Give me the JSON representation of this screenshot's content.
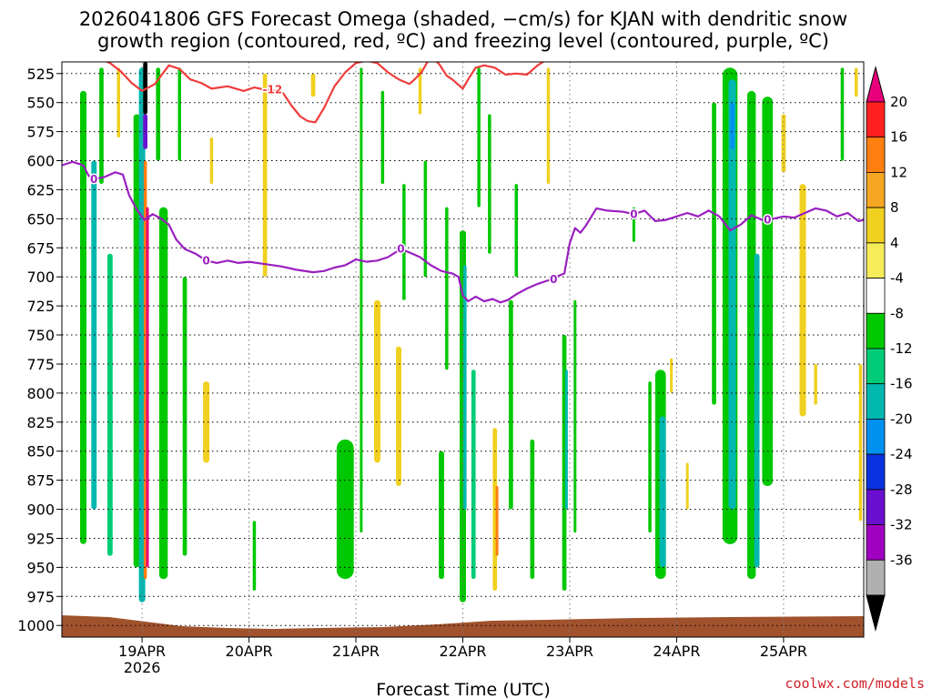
{
  "title_lines": [
    "2026041806 GFS Forecast Omega (shaded, −cm/s) for KJAN with dendritic snow",
    "growth region (contoured, red, ºC) and freezing level (contoured, purple, ºC)"
  ],
  "credit": "coolwx.com/models",
  "chart_data": {
    "type": "heatmap",
    "xlabel": "Forecast Time (UTC)",
    "ylabel": "",
    "x_ticks": [
      "19APR",
      "20APR",
      "21APR",
      "22APR",
      "23APR",
      "24APR",
      "25APR"
    ],
    "x_tick_sub": {
      "19APR": "2026"
    },
    "x_range_days": [
      18.25,
      25.75
    ],
    "y_ticks": [
      525,
      550,
      575,
      600,
      625,
      650,
      675,
      700,
      725,
      750,
      775,
      800,
      825,
      850,
      875,
      900,
      925,
      950,
      975,
      1000
    ],
    "y_range": [
      515,
      1010
    ],
    "grid": true,
    "colorbar": {
      "labels": [
        20,
        16,
        12,
        8,
        4,
        -4,
        -8,
        -12,
        -16,
        -20,
        -24,
        -28,
        -32,
        -36
      ],
      "colors": [
        "#e8007a",
        "#ff2020",
        "#ff7f10",
        "#f5a623",
        "#f0d020",
        "#f6ec5a",
        "#ffffff",
        "#00c800",
        "#00cc77",
        "#00b8b0",
        "#0090f0",
        "#0a32e0",
        "#6a0fd0",
        "#a000c0",
        "#b0b0b0",
        "#000000"
      ]
    },
    "omega_patches": [
      {
        "x": 18.45,
        "p0": 540,
        "p1": 930,
        "w": 0.06,
        "c": "#00c800"
      },
      {
        "x": 18.55,
        "p0": 600,
        "p1": 900,
        "w": 0.05,
        "c": "#00b8b0"
      },
      {
        "x": 18.62,
        "p0": 520,
        "p1": 620,
        "w": 0.04,
        "c": "#00c800"
      },
      {
        "x": 18.7,
        "p0": 680,
        "p1": 940,
        "w": 0.05,
        "c": "#00cc77"
      },
      {
        "x": 18.78,
        "p0": 520,
        "p1": 580,
        "w": 0.03,
        "c": "#f0d020"
      },
      {
        "x": 18.95,
        "p0": 560,
        "p1": 950,
        "w": 0.06,
        "c": "#00c800"
      },
      {
        "x": 19.0,
        "p0": 520,
        "p1": 980,
        "w": 0.06,
        "c": "#00b8b0"
      },
      {
        "x": 19.03,
        "p0": 600,
        "p1": 960,
        "w": 0.03,
        "c": "#ff7f10"
      },
      {
        "x": 19.05,
        "p0": 640,
        "p1": 950,
        "w": 0.02,
        "c": "#e8007a"
      },
      {
        "x": 19.03,
        "p0": 515,
        "p1": 560,
        "w": 0.04,
        "c": "#000000"
      },
      {
        "x": 19.03,
        "p0": 560,
        "p1": 590,
        "w": 0.04,
        "c": "#6a0fd0"
      },
      {
        "x": 19.2,
        "p0": 640,
        "p1": 960,
        "w": 0.08,
        "c": "#00c800"
      },
      {
        "x": 19.15,
        "p0": 520,
        "p1": 600,
        "w": 0.04,
        "c": "#00c800"
      },
      {
        "x": 19.35,
        "p0": 520,
        "p1": 600,
        "w": 0.03,
        "c": "#00c800"
      },
      {
        "x": 19.4,
        "p0": 700,
        "p1": 940,
        "w": 0.04,
        "c": "#00c800"
      },
      {
        "x": 19.6,
        "p0": 790,
        "p1": 860,
        "w": 0.06,
        "c": "#f0d020"
      },
      {
        "x": 19.65,
        "p0": 580,
        "p1": 620,
        "w": 0.03,
        "c": "#f0d020"
      },
      {
        "x": 20.05,
        "p0": 910,
        "p1": 970,
        "w": 0.03,
        "c": "#00c800"
      },
      {
        "x": 20.15,
        "p0": 525,
        "p1": 700,
        "w": 0.04,
        "c": "#f0d020"
      },
      {
        "x": 20.6,
        "p0": 525,
        "p1": 545,
        "w": 0.04,
        "c": "#f0d020"
      },
      {
        "x": 20.9,
        "p0": 840,
        "p1": 960,
        "w": 0.16,
        "c": "#00c800"
      },
      {
        "x": 21.05,
        "p0": 520,
        "p1": 920,
        "w": 0.02,
        "c": "#00c800"
      },
      {
        "x": 21.2,
        "p0": 720,
        "p1": 860,
        "w": 0.06,
        "c": "#f0d020"
      },
      {
        "x": 21.25,
        "p0": 540,
        "p1": 620,
        "w": 0.03,
        "c": "#00c800"
      },
      {
        "x": 21.4,
        "p0": 760,
        "p1": 880,
        "w": 0.05,
        "c": "#f0d020"
      },
      {
        "x": 21.45,
        "p0": 620,
        "p1": 720,
        "w": 0.03,
        "c": "#00c800"
      },
      {
        "x": 21.6,
        "p0": 520,
        "p1": 560,
        "w": 0.03,
        "c": "#f0d020"
      },
      {
        "x": 21.65,
        "p0": 600,
        "p1": 700,
        "w": 0.03,
        "c": "#00c800"
      },
      {
        "x": 21.8,
        "p0": 850,
        "p1": 960,
        "w": 0.05,
        "c": "#00c800"
      },
      {
        "x": 21.85,
        "p0": 640,
        "p1": 780,
        "w": 0.03,
        "c": "#00c800"
      },
      {
        "x": 22.0,
        "p0": 660,
        "p1": 980,
        "w": 0.06,
        "c": "#00c800"
      },
      {
        "x": 22.02,
        "p0": 690,
        "p1": 900,
        "w": 0.03,
        "c": "#00b8b0"
      },
      {
        "x": 22.1,
        "p0": 780,
        "p1": 960,
        "w": 0.04,
        "c": "#00cc77"
      },
      {
        "x": 22.15,
        "p0": 520,
        "p1": 640,
        "w": 0.03,
        "c": "#00c800"
      },
      {
        "x": 22.25,
        "p0": 560,
        "p1": 680,
        "w": 0.03,
        "c": "#00c800"
      },
      {
        "x": 22.3,
        "p0": 830,
        "p1": 970,
        "w": 0.04,
        "c": "#f0d020"
      },
      {
        "x": 22.32,
        "p0": 880,
        "p1": 940,
        "w": 0.02,
        "c": "#ff7f10"
      },
      {
        "x": 22.45,
        "p0": 720,
        "p1": 900,
        "w": 0.04,
        "c": "#00c800"
      },
      {
        "x": 22.5,
        "p0": 620,
        "p1": 700,
        "w": 0.03,
        "c": "#00c800"
      },
      {
        "x": 22.65,
        "p0": 840,
        "p1": 960,
        "w": 0.04,
        "c": "#00c800"
      },
      {
        "x": 22.8,
        "p0": 520,
        "p1": 620,
        "w": 0.03,
        "c": "#f0d020"
      },
      {
        "x": 22.95,
        "p0": 750,
        "p1": 970,
        "w": 0.04,
        "c": "#00c800"
      },
      {
        "x": 22.97,
        "p0": 780,
        "p1": 900,
        "w": 0.02,
        "c": "#00b8b0"
      },
      {
        "x": 23.05,
        "p0": 720,
        "p1": 920,
        "w": 0.02,
        "c": "#00c800"
      },
      {
        "x": 23.6,
        "p0": 640,
        "p1": 670,
        "w": 0.02,
        "c": "#00c800"
      },
      {
        "x": 23.75,
        "p0": 790,
        "p1": 920,
        "w": 0.03,
        "c": "#00c800"
      },
      {
        "x": 23.85,
        "p0": 780,
        "p1": 960,
        "w": 0.1,
        "c": "#00c800"
      },
      {
        "x": 23.87,
        "p0": 820,
        "p1": 950,
        "w": 0.06,
        "c": "#00b8b0"
      },
      {
        "x": 23.95,
        "p0": 770,
        "p1": 800,
        "w": 0.02,
        "c": "#f0d020"
      },
      {
        "x": 24.1,
        "p0": 860,
        "p1": 900,
        "w": 0.02,
        "c": "#f0d020"
      },
      {
        "x": 24.35,
        "p0": 550,
        "p1": 810,
        "w": 0.04,
        "c": "#00c800"
      },
      {
        "x": 24.5,
        "p0": 520,
        "p1": 930,
        "w": 0.14,
        "c": "#00c800"
      },
      {
        "x": 24.52,
        "p0": 530,
        "p1": 900,
        "w": 0.07,
        "c": "#00b8b0"
      },
      {
        "x": 24.52,
        "p0": 550,
        "p1": 590,
        "w": 0.04,
        "c": "#0090f0"
      },
      {
        "x": 24.7,
        "p0": 540,
        "p1": 960,
        "w": 0.08,
        "c": "#00c800"
      },
      {
        "x": 24.75,
        "p0": 680,
        "p1": 950,
        "w": 0.05,
        "c": "#00b8b0"
      },
      {
        "x": 24.85,
        "p0": 545,
        "p1": 880,
        "w": 0.1,
        "c": "#00c800"
      },
      {
        "x": 25.0,
        "p0": 560,
        "p1": 610,
        "w": 0.04,
        "c": "#f0d020"
      },
      {
        "x": 25.18,
        "p0": 620,
        "p1": 820,
        "w": 0.06,
        "c": "#f0d020"
      },
      {
        "x": 25.3,
        "p0": 775,
        "p1": 810,
        "w": 0.03,
        "c": "#f0d020"
      },
      {
        "x": 25.55,
        "p0": 520,
        "p1": 600,
        "w": 0.03,
        "c": "#00c800"
      },
      {
        "x": 25.72,
        "p0": 775,
        "p1": 910,
        "w": 0.03,
        "c": "#f0d020"
      },
      {
        "x": 25.68,
        "p0": 520,
        "p1": 545,
        "w": 0.03,
        "c": "#f0d020"
      }
    ],
    "contours": [
      {
        "level": -12,
        "label": "-12",
        "color": "#f03c3c",
        "label_at": [
          20.22,
          539
        ],
        "points": [
          [
            18.6,
            512
          ],
          [
            18.7,
            516
          ],
          [
            18.8,
            523
          ],
          [
            18.9,
            533
          ],
          [
            19.0,
            540
          ],
          [
            19.12,
            534
          ],
          [
            19.25,
            518
          ],
          [
            19.35,
            521
          ],
          [
            19.45,
            530
          ],
          [
            19.55,
            533
          ],
          [
            19.65,
            538
          ],
          [
            19.8,
            536
          ],
          [
            19.95,
            540
          ],
          [
            20.05,
            537
          ],
          [
            20.15,
            539
          ],
          [
            20.25,
            540
          ],
          [
            20.32,
            542
          ],
          [
            20.4,
            553
          ],
          [
            20.48,
            562
          ],
          [
            20.55,
            566
          ],
          [
            20.62,
            567
          ],
          [
            20.7,
            555
          ],
          [
            20.8,
            536
          ],
          [
            20.9,
            524
          ],
          [
            21.0,
            516
          ],
          [
            21.1,
            514
          ],
          [
            21.2,
            516
          ],
          [
            21.3,
            524
          ],
          [
            21.4,
            530
          ],
          [
            21.5,
            534
          ],
          [
            21.55,
            530
          ],
          [
            21.62,
            523
          ],
          [
            21.7,
            510
          ],
          [
            21.78,
            517
          ],
          [
            21.85,
            527
          ],
          [
            21.9,
            530
          ],
          [
            22.0,
            538
          ],
          [
            22.05,
            530
          ],
          [
            22.12,
            520
          ],
          [
            22.2,
            518
          ],
          [
            22.3,
            520
          ],
          [
            22.4,
            526
          ],
          [
            22.5,
            525
          ],
          [
            22.6,
            526
          ],
          [
            22.7,
            518
          ],
          [
            22.8,
            512
          ],
          [
            22.9,
            514
          ],
          [
            23.0,
            512
          ],
          [
            23.1,
            510
          ]
        ]
      },
      {
        "level": 0,
        "label": "0",
        "color": "#9a1fc0",
        "label_at": [
          18.55,
          616
        ],
        "points": [
          [
            18.25,
            604
          ],
          [
            18.35,
            601
          ],
          [
            18.45,
            604
          ],
          [
            18.5,
            613
          ],
          [
            18.55,
            616
          ],
          [
            18.65,
            614
          ],
          [
            18.75,
            610
          ],
          [
            18.82,
            612
          ],
          [
            18.88,
            630
          ],
          [
            18.95,
            642
          ],
          [
            19.02,
            651
          ],
          [
            19.1,
            646
          ],
          [
            19.18,
            650
          ],
          [
            19.25,
            655
          ],
          [
            19.32,
            668
          ],
          [
            19.4,
            676
          ],
          [
            19.5,
            680
          ],
          [
            19.6,
            686
          ],
          [
            19.7,
            688
          ],
          [
            19.8,
            686
          ],
          [
            19.9,
            688
          ],
          [
            20.0,
            687
          ],
          [
            20.15,
            689
          ],
          [
            20.3,
            691
          ],
          [
            20.45,
            694
          ],
          [
            20.6,
            696
          ],
          [
            20.7,
            695
          ],
          [
            20.8,
            692
          ],
          [
            20.9,
            690
          ],
          [
            21.0,
            685
          ],
          [
            21.1,
            687
          ],
          [
            21.2,
            686
          ],
          [
            21.3,
            683
          ],
          [
            21.42,
            676
          ],
          [
            21.5,
            679
          ],
          [
            21.6,
            683
          ],
          [
            21.7,
            690
          ],
          [
            21.8,
            695
          ],
          [
            21.9,
            697
          ],
          [
            21.96,
            700
          ],
          [
            22.0,
            716
          ],
          [
            22.05,
            721
          ],
          [
            22.12,
            717
          ],
          [
            22.2,
            721
          ],
          [
            22.28,
            719
          ],
          [
            22.35,
            722
          ],
          [
            22.42,
            720
          ],
          [
            22.5,
            715
          ],
          [
            22.6,
            710
          ],
          [
            22.7,
            706
          ],
          [
            22.8,
            703
          ],
          [
            22.95,
            697
          ],
          [
            23.0,
            671
          ],
          [
            23.05,
            658
          ],
          [
            23.1,
            662
          ],
          [
            23.15,
            656
          ],
          [
            23.25,
            641
          ],
          [
            23.35,
            643
          ],
          [
            23.5,
            644
          ],
          [
            23.6,
            646
          ],
          [
            23.7,
            643
          ],
          [
            23.8,
            652
          ],
          [
            23.9,
            651
          ],
          [
            24.0,
            648
          ],
          [
            24.1,
            645
          ],
          [
            24.2,
            648
          ],
          [
            24.3,
            643
          ],
          [
            24.4,
            648
          ],
          [
            24.5,
            660
          ],
          [
            24.6,
            655
          ],
          [
            24.7,
            647
          ],
          [
            24.8,
            651
          ],
          [
            24.9,
            650
          ],
          [
            25.0,
            648
          ],
          [
            25.1,
            649
          ],
          [
            25.2,
            645
          ],
          [
            25.3,
            641
          ],
          [
            25.4,
            643
          ],
          [
            25.5,
            648
          ],
          [
            25.6,
            645
          ],
          [
            25.7,
            652
          ],
          [
            25.75,
            651
          ]
        ]
      }
    ]
  }
}
